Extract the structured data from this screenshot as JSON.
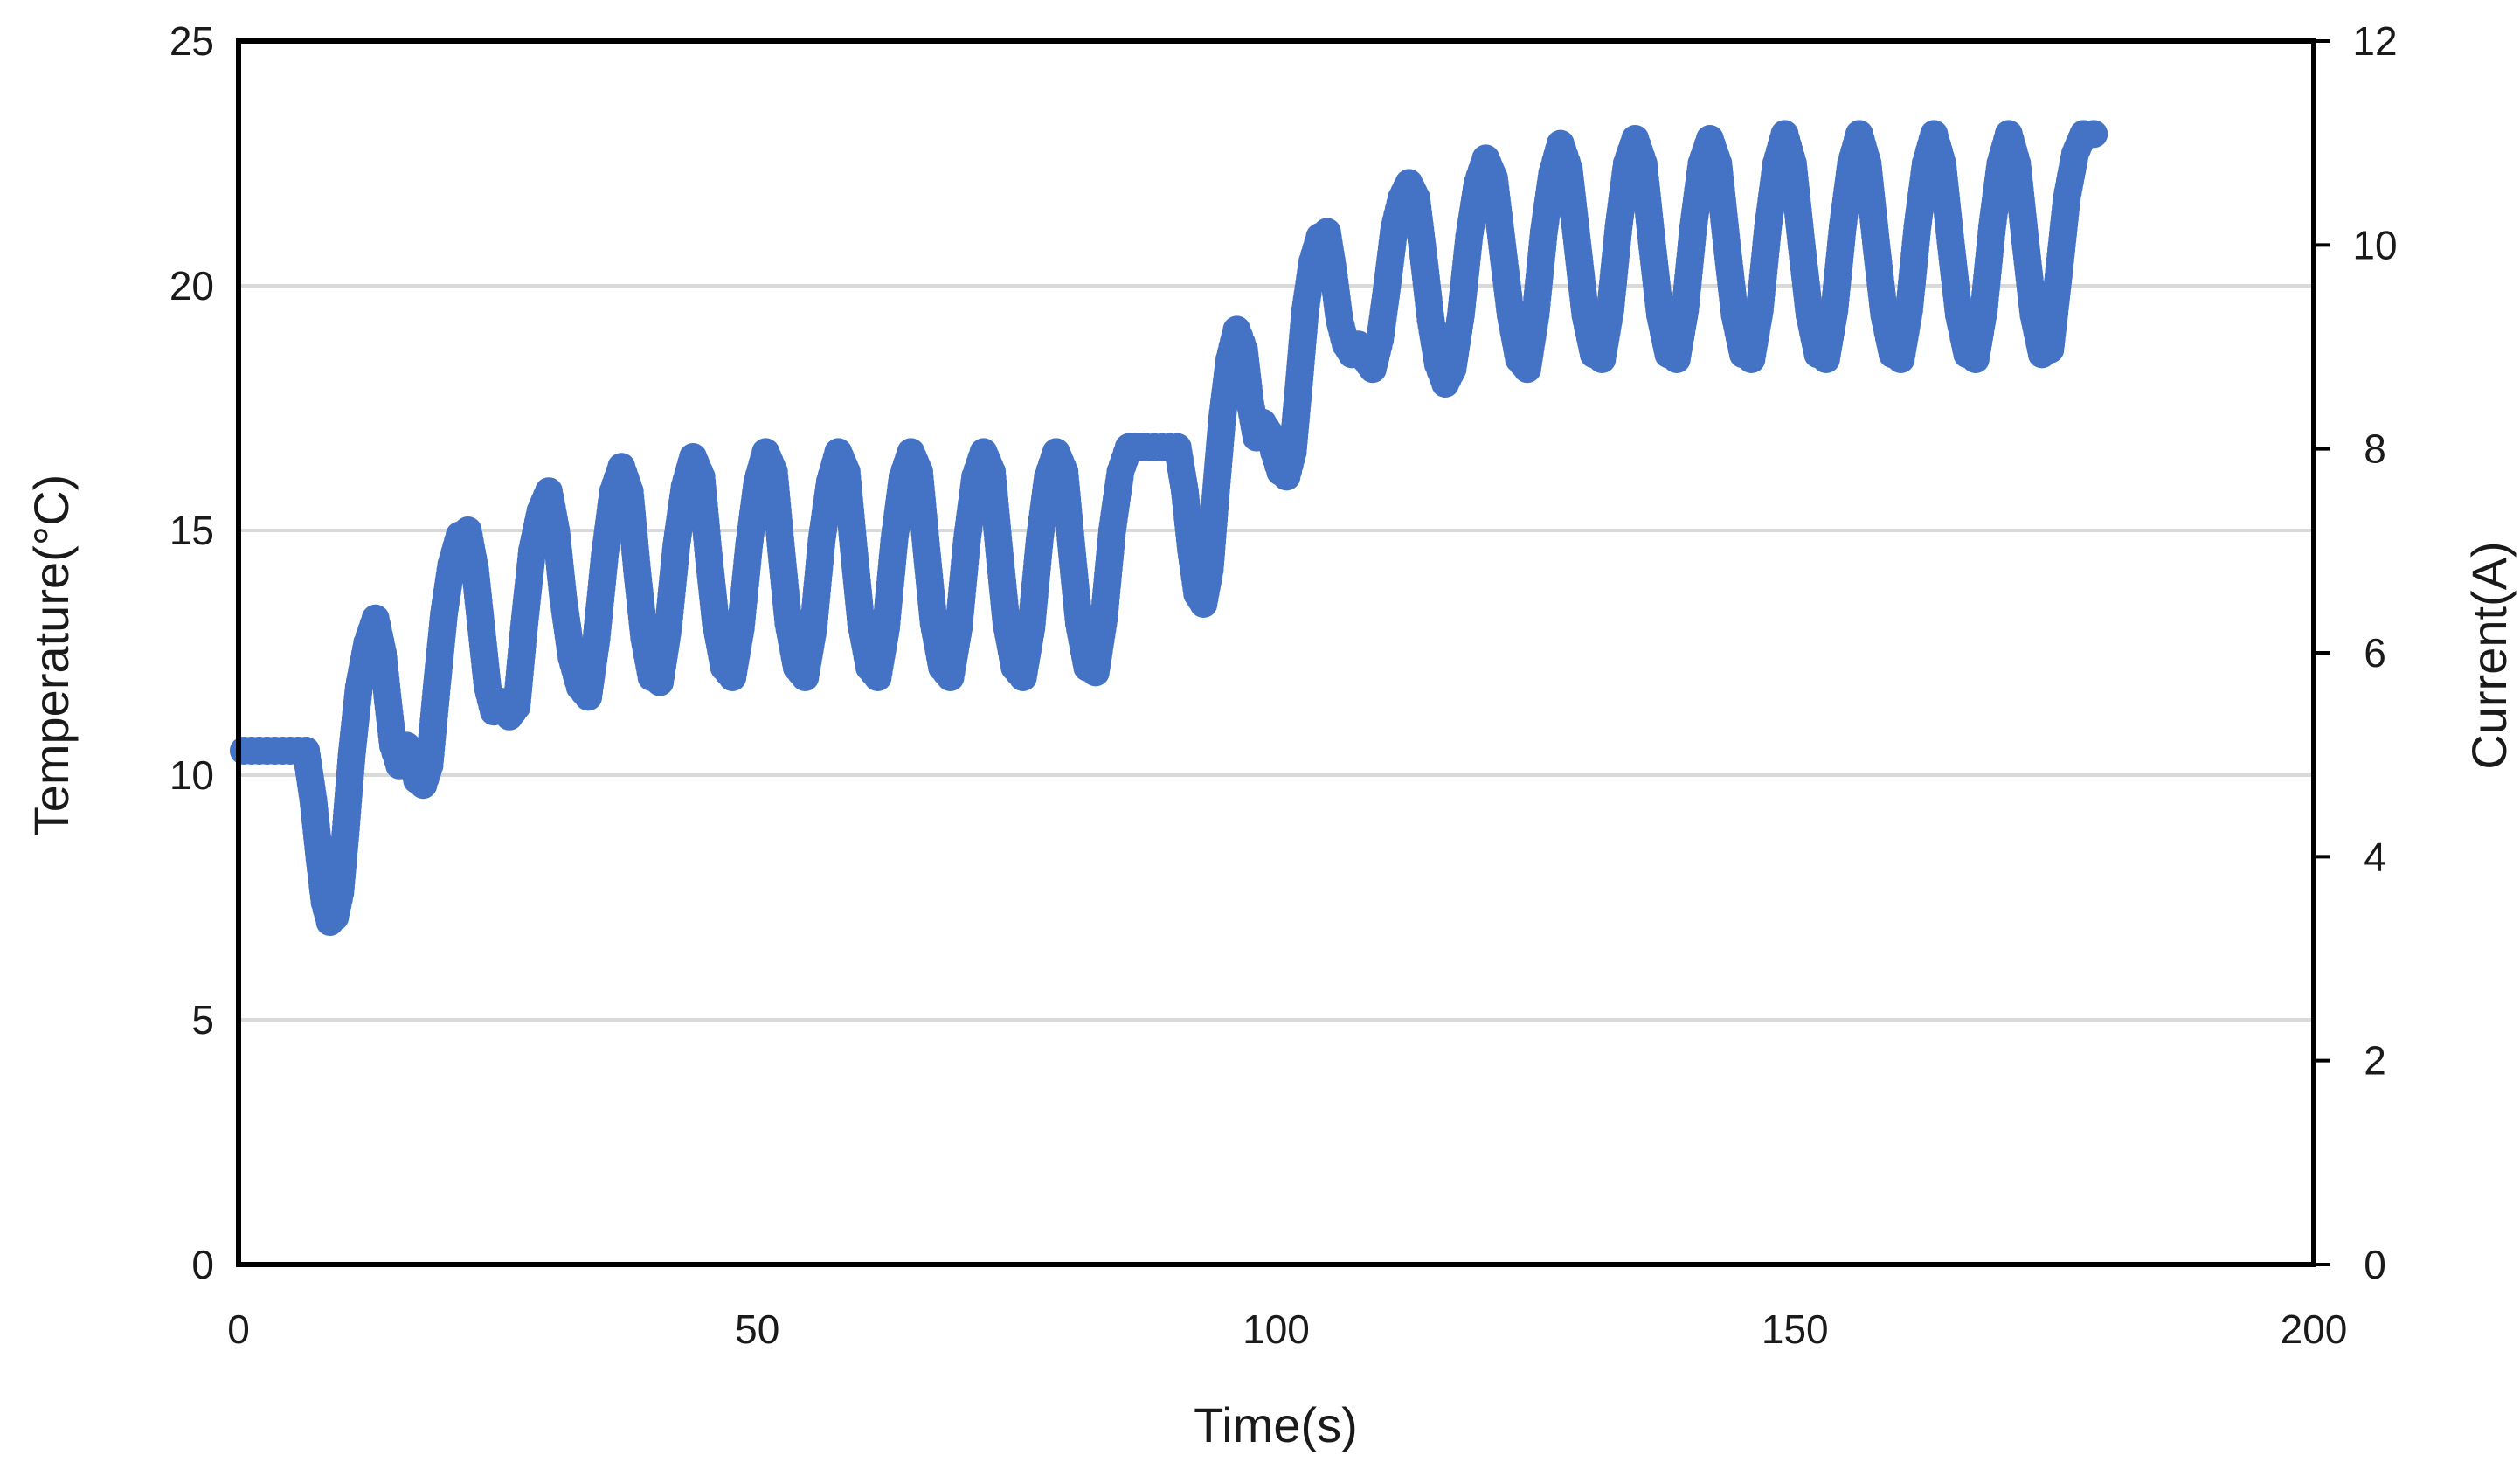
{
  "chart_data": {
    "type": "scatter",
    "title": "",
    "xlabel": "Time(s)",
    "ylabel": "Temperature(°C)",
    "y2label": "Current(A)",
    "xlim": [
      0,
      200
    ],
    "ylim": [
      0,
      25
    ],
    "y2lim": [
      0,
      12
    ],
    "x_ticks": [
      "0",
      "50",
      "100",
      "150",
      "200"
    ],
    "y_ticks": [
      "0",
      "5",
      "10",
      "15",
      "20",
      "25"
    ],
    "y2_ticks": [
      "0",
      "2",
      "4",
      "6",
      "8",
      "10",
      "12"
    ],
    "grid": "horizontal",
    "legend": "none",
    "series_color": "#4472c4",
    "series": [
      {
        "points": [
          [
            0.5,
            10.5
          ],
          [
            2,
            10.5
          ],
          [
            3.5,
            10.5
          ],
          [
            5,
            10.5
          ],
          [
            6.5,
            10.5
          ],
          [
            7.2,
            9.5
          ],
          [
            7.8,
            8.3
          ],
          [
            8.3,
            7.4
          ],
          [
            8.8,
            7.0
          ],
          [
            9.3,
            7.1
          ],
          [
            9.8,
            7.6
          ],
          [
            10.3,
            8.8
          ],
          [
            10.9,
            10.4
          ],
          [
            11.6,
            11.8
          ],
          [
            12.4,
            12.7
          ],
          [
            13.2,
            13.2
          ],
          [
            13.9,
            12.5
          ],
          [
            14.4,
            11.5
          ],
          [
            14.9,
            10.6
          ],
          [
            15.5,
            10.2
          ],
          [
            16.2,
            10.6
          ],
          [
            16.7,
            10.3
          ],
          [
            17.2,
            9.9
          ],
          [
            17.8,
            9.8
          ],
          [
            18.4,
            10.2
          ],
          [
            19.1,
            11.8
          ],
          [
            19.8,
            13.3
          ],
          [
            20.5,
            14.3
          ],
          [
            21.3,
            14.9
          ],
          [
            22.1,
            15.0
          ],
          [
            22.8,
            14.2
          ],
          [
            23.4,
            13.0
          ],
          [
            24,
            11.8
          ],
          [
            24.6,
            11.3
          ],
          [
            25.3,
            11.5
          ],
          [
            26.1,
            11.2
          ],
          [
            26.8,
            11.4
          ],
          [
            27.5,
            13.0
          ],
          [
            28.3,
            14.6
          ],
          [
            29.1,
            15.4
          ],
          [
            29.9,
            15.8
          ],
          [
            30.6,
            15.0
          ],
          [
            31.3,
            13.6
          ],
          [
            32.1,
            12.4
          ],
          [
            32.9,
            11.8
          ],
          [
            33.7,
            11.6
          ],
          [
            34.5,
            12.8
          ],
          [
            35.3,
            14.5
          ],
          [
            36.1,
            15.8
          ],
          [
            36.9,
            16.3
          ],
          [
            37.7,
            15.8
          ],
          [
            38.4,
            14.2
          ],
          [
            39.1,
            12.8
          ],
          [
            39.8,
            12.0
          ],
          [
            40.6,
            11.9
          ],
          [
            41.4,
            13.0
          ],
          [
            42.2,
            14.7
          ],
          [
            43,
            15.9
          ],
          [
            43.8,
            16.5
          ],
          [
            44.6,
            16.1
          ],
          [
            45.3,
            14.5
          ],
          [
            46,
            13.1
          ],
          [
            46.8,
            12.2
          ],
          [
            47.6,
            12.0
          ],
          [
            48.4,
            13.0
          ],
          [
            49.2,
            14.7
          ],
          [
            50,
            16.0
          ],
          [
            50.8,
            16.6
          ],
          [
            51.6,
            16.2
          ],
          [
            52.3,
            14.6
          ],
          [
            53,
            13.1
          ],
          [
            53.8,
            12.2
          ],
          [
            54.6,
            12.0
          ],
          [
            55.4,
            13.0
          ],
          [
            56.2,
            14.8
          ],
          [
            57,
            16.0
          ],
          [
            57.8,
            16.6
          ],
          [
            58.6,
            16.2
          ],
          [
            59.3,
            14.6
          ],
          [
            60,
            13.1
          ],
          [
            60.8,
            12.2
          ],
          [
            61.6,
            12.0
          ],
          [
            62.4,
            13.0
          ],
          [
            63.2,
            14.8
          ],
          [
            64,
            16.1
          ],
          [
            64.8,
            16.6
          ],
          [
            65.6,
            16.2
          ],
          [
            66.3,
            14.6
          ],
          [
            67,
            13.1
          ],
          [
            67.8,
            12.2
          ],
          [
            68.6,
            12.0
          ],
          [
            69.4,
            13.0
          ],
          [
            70.2,
            14.8
          ],
          [
            71,
            16.1
          ],
          [
            71.8,
            16.6
          ],
          [
            72.6,
            16.2
          ],
          [
            73.3,
            14.6
          ],
          [
            74,
            13.1
          ],
          [
            74.8,
            12.2
          ],
          [
            75.6,
            12.0
          ],
          [
            76.4,
            13.0
          ],
          [
            77.2,
            14.8
          ],
          [
            78,
            16.1
          ],
          [
            78.8,
            16.6
          ],
          [
            79.6,
            16.2
          ],
          [
            80.3,
            14.6
          ],
          [
            81,
            13.1
          ],
          [
            81.8,
            12.2
          ],
          [
            82.6,
            12.1
          ],
          [
            83.4,
            13.2
          ],
          [
            84.2,
            15.0
          ],
          [
            85,
            16.2
          ],
          [
            85.8,
            16.7
          ],
          [
            87.5,
            16.7
          ],
          [
            89,
            16.7
          ],
          [
            90.5,
            16.7
          ],
          [
            91.2,
            15.8
          ],
          [
            91.8,
            14.6
          ],
          [
            92.4,
            13.7
          ],
          [
            93,
            13.5
          ],
          [
            93.6,
            14.2
          ],
          [
            94.2,
            15.8
          ],
          [
            94.8,
            17.3
          ],
          [
            95.5,
            18.5
          ],
          [
            96.2,
            19.1
          ],
          [
            96.9,
            18.7
          ],
          [
            97.5,
            17.6
          ],
          [
            98.1,
            16.9
          ],
          [
            98.7,
            17.2
          ],
          [
            99.3,
            17.0
          ],
          [
            99.8,
            16.6
          ],
          [
            100.4,
            16.2
          ],
          [
            101,
            16.1
          ],
          [
            101.6,
            16.6
          ],
          [
            102.2,
            18.0
          ],
          [
            102.8,
            19.5
          ],
          [
            103.5,
            20.5
          ],
          [
            104.2,
            21.0
          ],
          [
            104.9,
            21.1
          ],
          [
            105.5,
            20.3
          ],
          [
            106.1,
            19.3
          ],
          [
            106.7,
            18.8
          ],
          [
            107.3,
            18.6
          ],
          [
            107.9,
            18.8
          ],
          [
            108.6,
            18.5
          ],
          [
            109.3,
            18.3
          ],
          [
            110,
            18.9
          ],
          [
            110.7,
            20.0
          ],
          [
            111.4,
            21.2
          ],
          [
            112.1,
            21.8
          ],
          [
            112.8,
            22.1
          ],
          [
            113.5,
            21.8
          ],
          [
            114.2,
            20.6
          ],
          [
            114.9,
            19.3
          ],
          [
            115.6,
            18.4
          ],
          [
            116.3,
            18.0
          ],
          [
            117,
            18.3
          ],
          [
            117.8,
            19.4
          ],
          [
            118.6,
            21.0
          ],
          [
            119.4,
            22.1
          ],
          [
            120.2,
            22.6
          ],
          [
            121,
            22.2
          ],
          [
            121.8,
            20.8
          ],
          [
            122.6,
            19.4
          ],
          [
            123.4,
            18.5
          ],
          [
            124.2,
            18.3
          ],
          [
            125,
            19.4
          ],
          [
            125.8,
            21.1
          ],
          [
            126.6,
            22.3
          ],
          [
            127.4,
            22.9
          ],
          [
            128.2,
            22.4
          ],
          [
            129,
            20.9
          ],
          [
            129.8,
            19.4
          ],
          [
            130.6,
            18.6
          ],
          [
            131.4,
            18.5
          ],
          [
            132.2,
            19.5
          ],
          [
            133,
            21.2
          ],
          [
            133.8,
            22.5
          ],
          [
            134.6,
            23.0
          ],
          [
            135.4,
            22.5
          ],
          [
            136.2,
            20.9
          ],
          [
            137,
            19.4
          ],
          [
            137.8,
            18.6
          ],
          [
            138.6,
            18.5
          ],
          [
            139.4,
            19.5
          ],
          [
            140.2,
            21.2
          ],
          [
            141,
            22.5
          ],
          [
            141.8,
            23.0
          ],
          [
            142.6,
            22.5
          ],
          [
            143.4,
            20.9
          ],
          [
            144.2,
            19.4
          ],
          [
            145,
            18.6
          ],
          [
            145.8,
            18.5
          ],
          [
            146.6,
            19.5
          ],
          [
            147.4,
            21.2
          ],
          [
            148.2,
            22.5
          ],
          [
            149,
            23.1
          ],
          [
            149.8,
            22.5
          ],
          [
            150.6,
            20.9
          ],
          [
            151.4,
            19.4
          ],
          [
            152.2,
            18.6
          ],
          [
            153,
            18.5
          ],
          [
            153.8,
            19.5
          ],
          [
            154.6,
            21.2
          ],
          [
            155.4,
            22.5
          ],
          [
            156.2,
            23.1
          ],
          [
            157,
            22.5
          ],
          [
            157.8,
            20.9
          ],
          [
            158.6,
            19.4
          ],
          [
            159.4,
            18.6
          ],
          [
            160.2,
            18.5
          ],
          [
            161,
            19.5
          ],
          [
            161.8,
            21.2
          ],
          [
            162.6,
            22.5
          ],
          [
            163.4,
            23.1
          ],
          [
            164.2,
            22.5
          ],
          [
            165,
            20.9
          ],
          [
            165.8,
            19.4
          ],
          [
            166.6,
            18.6
          ],
          [
            167.4,
            18.5
          ],
          [
            168.2,
            19.5
          ],
          [
            169,
            21.2
          ],
          [
            169.8,
            22.5
          ],
          [
            170.6,
            23.1
          ],
          [
            171.4,
            22.5
          ],
          [
            172.2,
            20.9
          ],
          [
            173,
            19.4
          ],
          [
            173.8,
            18.6
          ],
          [
            174.6,
            18.7
          ],
          [
            175.4,
            20.2
          ],
          [
            176.2,
            21.8
          ],
          [
            177,
            22.7
          ],
          [
            177.8,
            23.1
          ],
          [
            178.8,
            23.1
          ]
        ]
      }
    ]
  }
}
